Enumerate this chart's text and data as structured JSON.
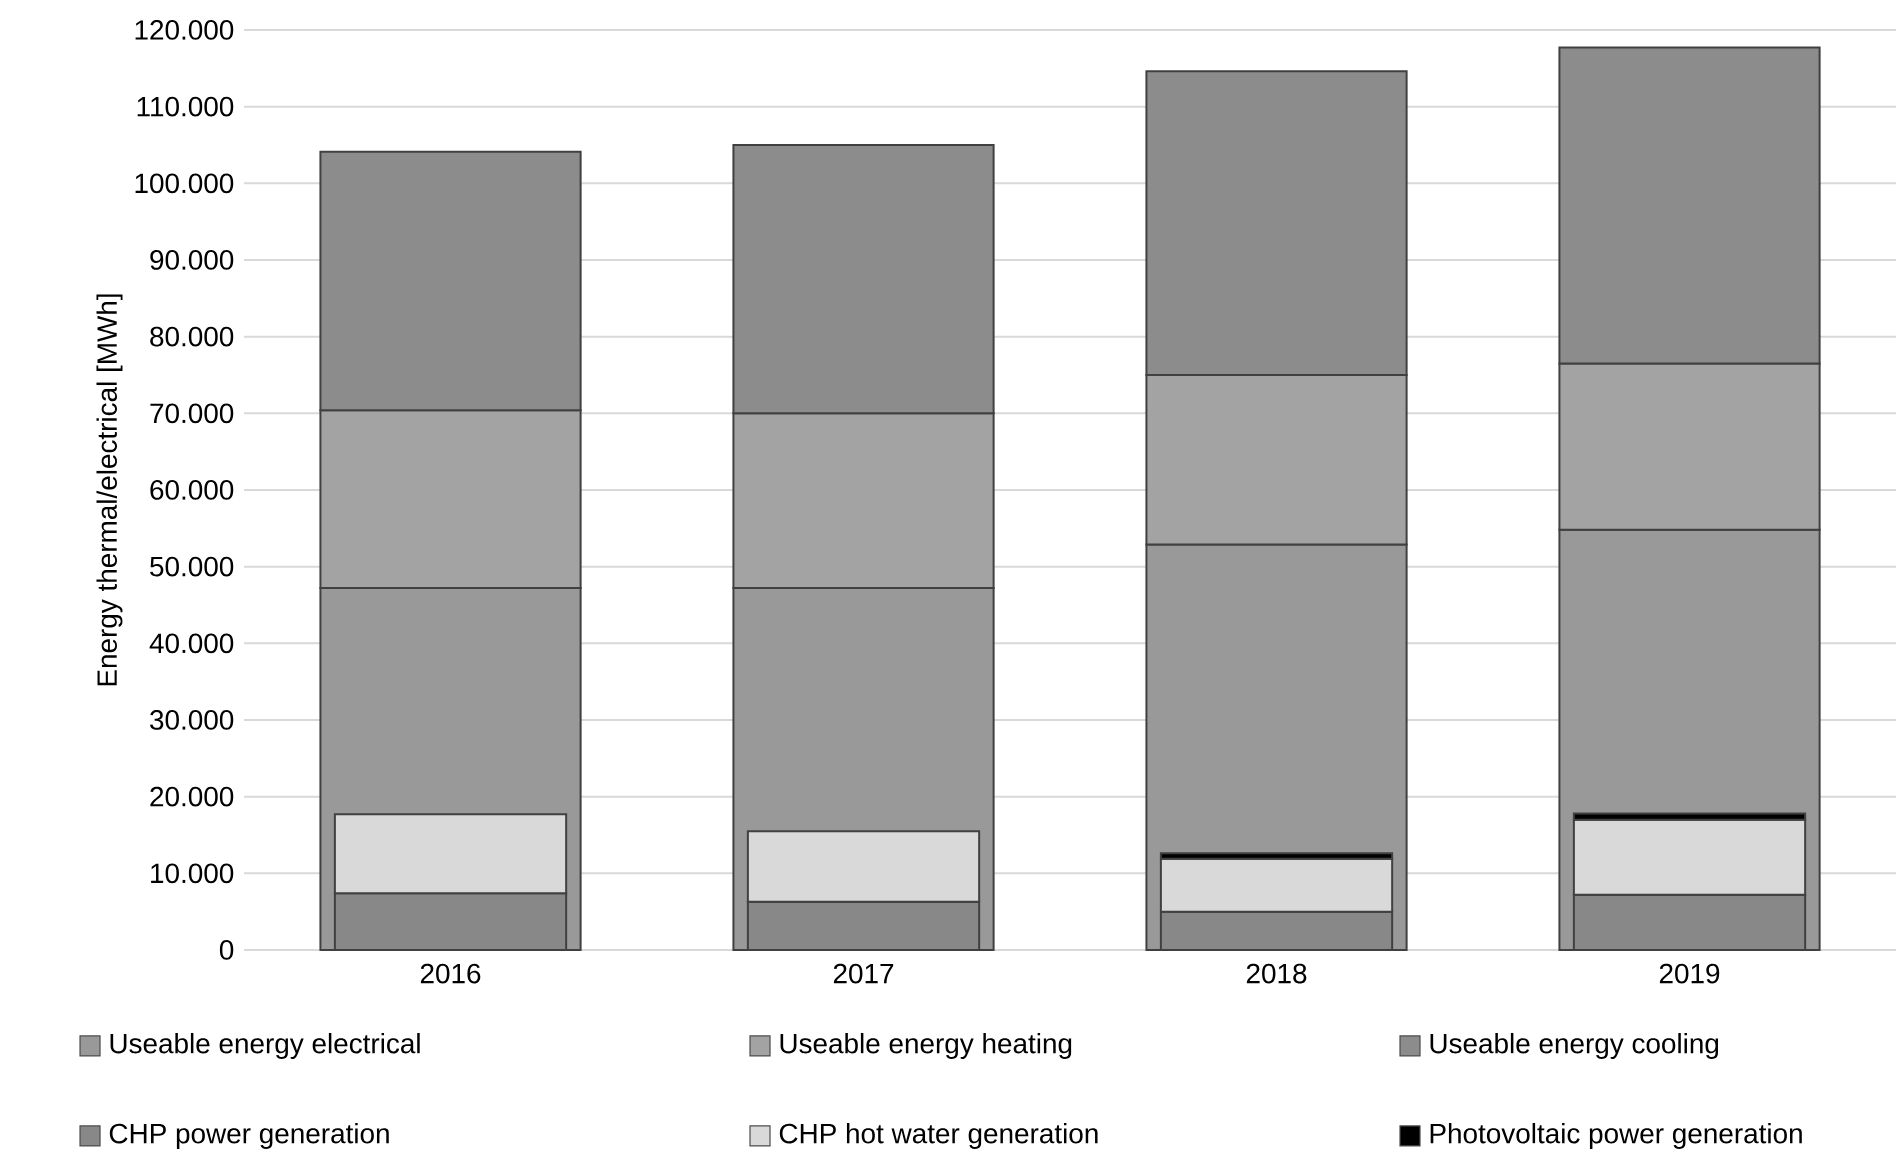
{
  "chart_data": {
    "type": "bar",
    "ylabel": "Energy thermal/electrical [MWh]",
    "categories": [
      "2016",
      "2017",
      "2018",
      "2019"
    ],
    "series": [
      {
        "name": "Useable energy electrical",
        "color": "#999999",
        "values": [
          47200,
          47200,
          52900,
          54800
        ],
        "base": [
          0,
          0,
          0,
          0
        ]
      },
      {
        "name": "Useable energy heating",
        "color": "#a3a3a3",
        "values": [
          23200,
          22800,
          22100,
          21700
        ],
        "base": [
          47200,
          47200,
          52900,
          54800
        ]
      },
      {
        "name": "Useable energy cooling",
        "color": "#8c8c8c",
        "values": [
          33700,
          35000,
          39600,
          41200
        ],
        "base": [
          70400,
          70000,
          75000,
          76500
        ]
      },
      {
        "name": "CHP power generation",
        "color": "#888888",
        "values": [
          7400,
          6300,
          5000,
          7200
        ],
        "base": [
          0,
          0,
          0,
          0
        ]
      },
      {
        "name": "CHP hot water generation",
        "color": "#d9d9d9",
        "values": [
          10300,
          9200,
          6900,
          9800
        ],
        "base": [
          7400,
          6300,
          5000,
          7200
        ]
      },
      {
        "name": "Photovoltaic power generation",
        "color": "#000000",
        "values": [
          null,
          null,
          700,
          800
        ],
        "base": [
          null,
          null,
          11900,
          17000
        ]
      }
    ],
    "ylim": [
      0,
      120000
    ],
    "yticks": [
      0,
      {
        "value": 10000,
        "label": "10.000"
      },
      {
        "value": 20000,
        "label": "20.000"
      },
      {
        "value": 30000,
        "label": "30.000"
      },
      {
        "value": 40000,
        "label": "40.000"
      },
      {
        "value": 50000,
        "label": "50.000"
      },
      {
        "value": 60000,
        "label": "60.000"
      },
      {
        "value": 70000,
        "label": "70.000"
      },
      {
        "value": 80000,
        "label": "80.000"
      },
      {
        "value": 90000,
        "label": "90.000"
      },
      {
        "value": 100000,
        "label": "100.000"
      },
      {
        "value": 110000,
        "label": "110.000"
      },
      {
        "value": 120000,
        "label": "120.000"
      }
    ],
    "grid": "y",
    "legend": "bottom"
  }
}
